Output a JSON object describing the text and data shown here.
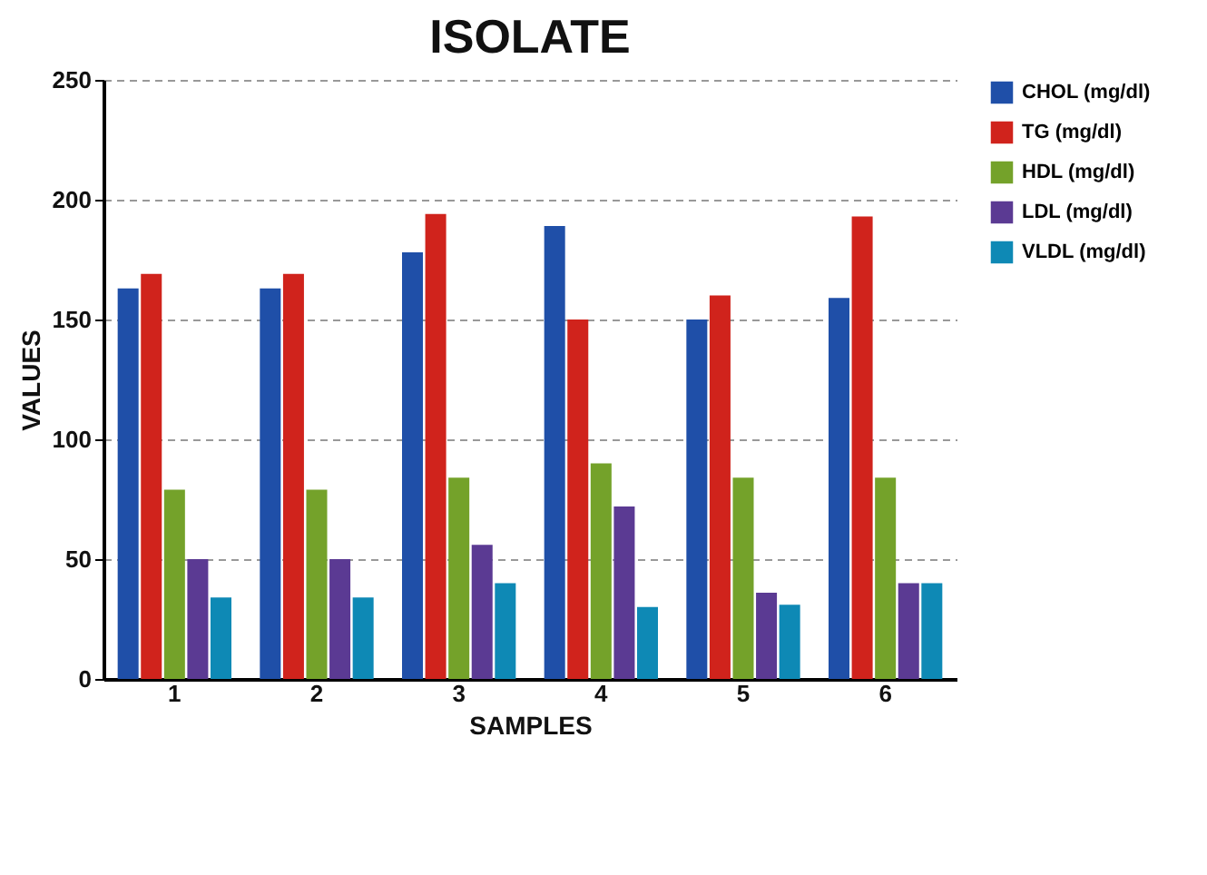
{
  "chart_data": {
    "type": "bar",
    "title": "ISOLATE",
    "xlabel": "SAMPLES",
    "ylabel": "VALUES",
    "categories": [
      "1",
      "2",
      "3",
      "4",
      "5",
      "6"
    ],
    "series": [
      {
        "name": "CHOL (mg/dl)",
        "color": "#1f4fa8",
        "values": [
          163,
          163,
          178,
          189,
          150,
          159
        ]
      },
      {
        "name": "TG (mg/dl)",
        "color": "#d0231c",
        "values": [
          169,
          169,
          194,
          150,
          160,
          193
        ]
      },
      {
        "name": "HDL (mg/dl)",
        "color": "#74a22a",
        "values": [
          79,
          79,
          84,
          90,
          84,
          84
        ]
      },
      {
        "name": "LDL (mg/dl)",
        "color": "#5b3a93",
        "values": [
          50,
          50,
          56,
          72,
          36,
          40
        ]
      },
      {
        "name": "VLDL (mg/dl)",
        "color": "#0e89b5",
        "values": [
          34,
          34,
          40,
          30,
          31,
          40
        ]
      }
    ],
    "ylim": [
      0,
      250
    ],
    "yticks": [
      0,
      50,
      100,
      150,
      200,
      250
    ],
    "grid": "y",
    "legend": "right"
  }
}
